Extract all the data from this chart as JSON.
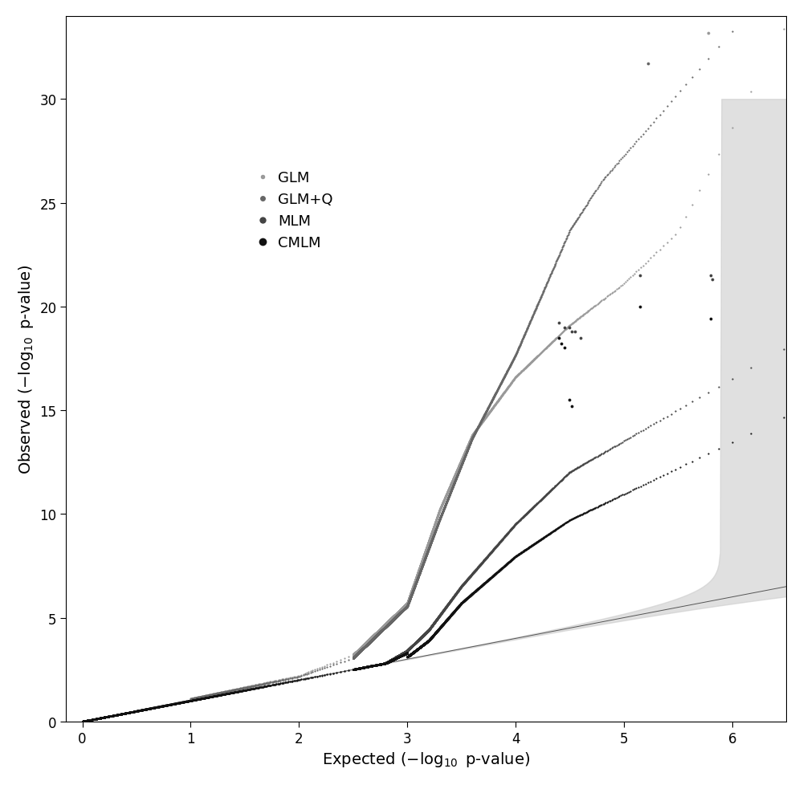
{
  "title": "",
  "xlabel": "Expected (-log10 p-value)",
  "ylabel": "Observed (-log10 p-value)",
  "xlim": [
    -0.15,
    6.5
  ],
  "ylim": [
    0,
    34
  ],
  "yticks": [
    0,
    5,
    10,
    15,
    20,
    25,
    30
  ],
  "xticks": [
    0,
    1,
    2,
    3,
    4,
    5,
    6
  ],
  "legend_labels": [
    "GLM",
    "GLM+Q",
    "MLM",
    "CMLM"
  ],
  "glm_color": "#999999",
  "glmq_color": "#666666",
  "mlm_color": "#444444",
  "cmlm_color": "#111111",
  "background_color": "#ffffff",
  "ci_color": "#cccccc",
  "diagonal_color": "#555555",
  "figsize": [
    10.0,
    9.79
  ],
  "dpi": 100
}
